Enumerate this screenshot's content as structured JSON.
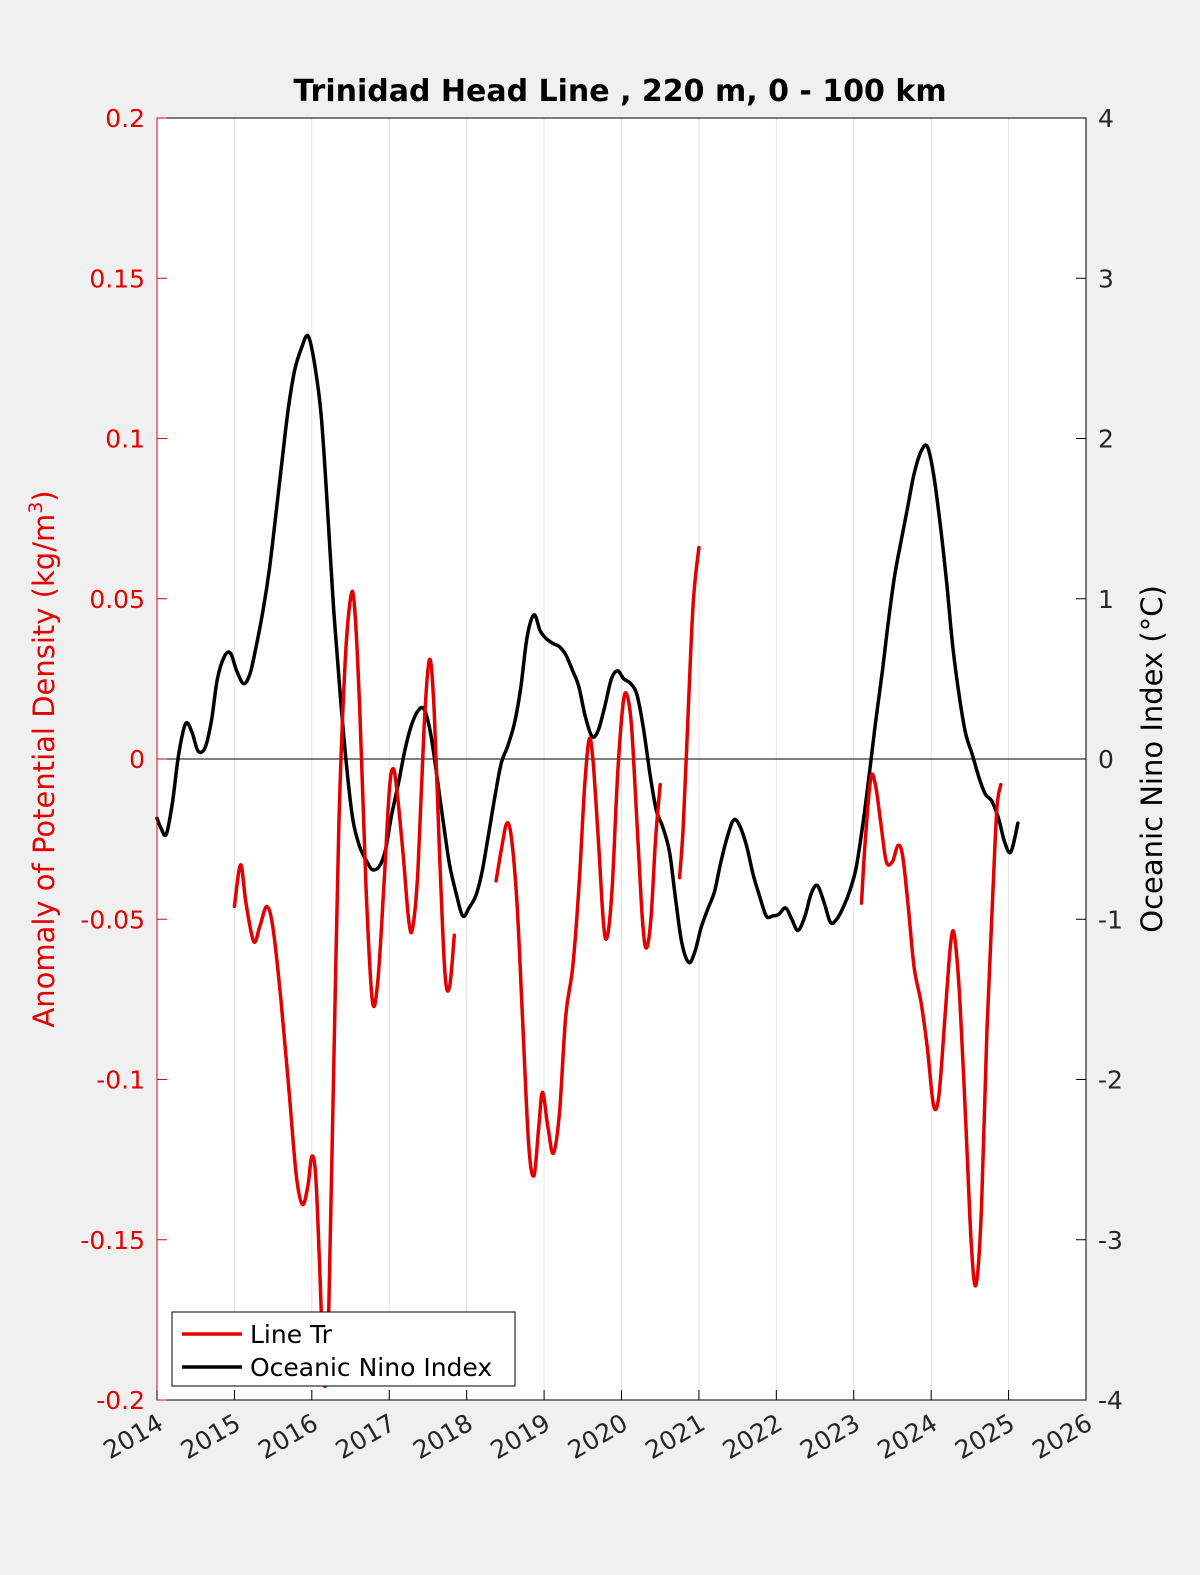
{
  "chart_data": {
    "type": "line",
    "title": "Trinidad Head Line , 220 m, 0 - 100 km",
    "xlabel": "",
    "ylabel_left": "Anomaly of Potential Density (kg/m",
    "ylabel_left_sup": "3",
    "ylabel_left_close": ")",
    "ylabel_right": "Oceanic Nino Index (°C)",
    "xlim": [
      2014,
      2026
    ],
    "ylim_left": [
      -0.2,
      0.2
    ],
    "ylim_right": [
      -4,
      4
    ],
    "xticks": [
      "2014",
      "2015",
      "2016",
      "2017",
      "2018",
      "2019",
      "2020",
      "2021",
      "2022",
      "2023",
      "2024",
      "2025",
      "2026"
    ],
    "xtick_values": [
      2014,
      2015,
      2016,
      2017,
      2018,
      2019,
      2020,
      2021,
      2022,
      2023,
      2024,
      2025,
      2026
    ],
    "yticks_left": [
      "0.2",
      "0.15",
      "0.1",
      "0.05",
      "0",
      "-0.05",
      "-0.1",
      "-0.15",
      "-0.2"
    ],
    "ytick_left_values": [
      0.2,
      0.15,
      0.1,
      0.05,
      0,
      -0.05,
      -0.1,
      -0.15,
      -0.2
    ],
    "yticks_right": [
      "4",
      "3",
      "2",
      "1",
      "0",
      "-1",
      "-2",
      "-3",
      "-4"
    ],
    "ytick_right_values": [
      4,
      3,
      2,
      1,
      0,
      -1,
      -2,
      -3,
      -4
    ],
    "grid": "vertical",
    "legend_position": "bottom-left",
    "colors": {
      "line_tr": "#e50000",
      "oni": "#000000",
      "left_axis": "#e50000",
      "right_axis": "#000000"
    },
    "series": [
      {
        "name": "Line Tr",
        "axis": "left",
        "segments": [
          [
            [
              2015.0,
              -0.046
            ],
            [
              2015.08,
              -0.033
            ],
            [
              2015.15,
              -0.045
            ],
            [
              2015.25,
              -0.057
            ],
            [
              2015.33,
              -0.052
            ],
            [
              2015.42,
              -0.046
            ],
            [
              2015.5,
              -0.053
            ],
            [
              2015.6,
              -0.075
            ],
            [
              2015.7,
              -0.102
            ],
            [
              2015.8,
              -0.13
            ],
            [
              2015.88,
              -0.139
            ],
            [
              2015.95,
              -0.133
            ],
            [
              2016.0,
              -0.124
            ],
            [
              2016.05,
              -0.13
            ],
            [
              2016.1,
              -0.158
            ],
            [
              2016.15,
              -0.19
            ],
            [
              2016.18,
              -0.194
            ],
            [
              2016.22,
              -0.17
            ],
            [
              2016.28,
              -0.1
            ],
            [
              2016.35,
              -0.02
            ],
            [
              2016.43,
              0.03
            ],
            [
              2016.5,
              0.05
            ],
            [
              2016.55,
              0.048
            ],
            [
              2016.62,
              0.015
            ],
            [
              2016.7,
              -0.04
            ],
            [
              2016.78,
              -0.075
            ],
            [
              2016.85,
              -0.07
            ],
            [
              2016.93,
              -0.04
            ],
            [
              2017.0,
              -0.01
            ],
            [
              2017.05,
              -0.003
            ],
            [
              2017.1,
              -0.01
            ],
            [
              2017.18,
              -0.03
            ],
            [
              2017.25,
              -0.05
            ],
            [
              2017.3,
              -0.053
            ],
            [
              2017.37,
              -0.035
            ],
            [
              2017.45,
              0.01
            ],
            [
              2017.52,
              0.031
            ],
            [
              2017.58,
              0.015
            ],
            [
              2017.65,
              -0.03
            ],
            [
              2017.72,
              -0.067
            ],
            [
              2017.78,
              -0.071
            ],
            [
              2017.84,
              -0.055
            ]
          ],
          [
            [
              2018.38,
              -0.038
            ],
            [
              2018.45,
              -0.028
            ],
            [
              2018.52,
              -0.02
            ],
            [
              2018.58,
              -0.025
            ],
            [
              2018.65,
              -0.045
            ],
            [
              2018.72,
              -0.08
            ],
            [
              2018.8,
              -0.12
            ],
            [
              2018.87,
              -0.13
            ],
            [
              2018.93,
              -0.115
            ],
            [
              2018.98,
              -0.104
            ],
            [
              2019.05,
              -0.115
            ],
            [
              2019.12,
              -0.123
            ],
            [
              2019.2,
              -0.11
            ],
            [
              2019.28,
              -0.08
            ],
            [
              2019.37,
              -0.065
            ],
            [
              2019.45,
              -0.04
            ],
            [
              2019.52,
              -0.01
            ],
            [
              2019.58,
              0.006
            ],
            [
              2019.63,
              0.0
            ],
            [
              2019.7,
              -0.025
            ],
            [
              2019.77,
              -0.052
            ],
            [
              2019.82,
              -0.055
            ],
            [
              2019.88,
              -0.04
            ],
            [
              2019.95,
              -0.005
            ],
            [
              2020.02,
              0.017
            ],
            [
              2020.07,
              0.02
            ],
            [
              2020.13,
              0.01
            ],
            [
              2020.2,
              -0.02
            ],
            [
              2020.27,
              -0.05
            ],
            [
              2020.32,
              -0.059
            ],
            [
              2020.38,
              -0.05
            ],
            [
              2020.44,
              -0.025
            ],
            [
              2020.5,
              -0.008
            ]
          ],
          [
            [
              2020.75,
              -0.037
            ],
            [
              2020.8,
              -0.02
            ],
            [
              2020.87,
              0.02
            ],
            [
              2020.93,
              0.05
            ],
            [
              2021.0,
              0.066
            ]
          ],
          [
            [
              2023.1,
              -0.045
            ],
            [
              2023.15,
              -0.025
            ],
            [
              2023.22,
              -0.006
            ],
            [
              2023.28,
              -0.008
            ],
            [
              2023.35,
              -0.02
            ],
            [
              2023.42,
              -0.032
            ],
            [
              2023.5,
              -0.032
            ],
            [
              2023.57,
              -0.027
            ],
            [
              2023.63,
              -0.03
            ],
            [
              2023.7,
              -0.045
            ],
            [
              2023.78,
              -0.065
            ],
            [
              2023.87,
              -0.076
            ],
            [
              2023.95,
              -0.09
            ],
            [
              2024.03,
              -0.108
            ],
            [
              2024.1,
              -0.105
            ],
            [
              2024.18,
              -0.08
            ],
            [
              2024.25,
              -0.058
            ],
            [
              2024.3,
              -0.055
            ],
            [
              2024.37,
              -0.075
            ],
            [
              2024.45,
              -0.115
            ],
            [
              2024.52,
              -0.152
            ],
            [
              2024.58,
              -0.164
            ],
            [
              2024.65,
              -0.14
            ],
            [
              2024.72,
              -0.085
            ],
            [
              2024.8,
              -0.04
            ],
            [
              2024.85,
              -0.015
            ],
            [
              2024.9,
              -0.008
            ]
          ]
        ]
      },
      {
        "name": "Oceanic Nino Index",
        "axis": "right",
        "segments": [
          [
            [
              2014.0,
              -0.37
            ],
            [
              2014.05,
              -0.43
            ],
            [
              2014.12,
              -0.47
            ],
            [
              2014.2,
              -0.27
            ],
            [
              2014.28,
              0.03
            ],
            [
              2014.37,
              0.22
            ],
            [
              2014.45,
              0.17
            ],
            [
              2014.53,
              0.05
            ],
            [
              2014.62,
              0.07
            ],
            [
              2014.7,
              0.23
            ],
            [
              2014.78,
              0.5
            ],
            [
              2014.87,
              0.64
            ],
            [
              2014.95,
              0.66
            ],
            [
              2015.03,
              0.55
            ],
            [
              2015.12,
              0.47
            ],
            [
              2015.2,
              0.53
            ],
            [
              2015.28,
              0.7
            ],
            [
              2015.37,
              0.93
            ],
            [
              2015.45,
              1.18
            ],
            [
              2015.53,
              1.5
            ],
            [
              2015.62,
              1.88
            ],
            [
              2015.7,
              2.2
            ],
            [
              2015.78,
              2.43
            ],
            [
              2015.87,
              2.57
            ],
            [
              2015.95,
              2.64
            ],
            [
              2016.03,
              2.48
            ],
            [
              2016.12,
              2.15
            ],
            [
              2016.2,
              1.58
            ],
            [
              2016.28,
              0.95
            ],
            [
              2016.37,
              0.38
            ],
            [
              2016.45,
              -0.05
            ],
            [
              2016.53,
              -0.38
            ],
            [
              2016.62,
              -0.55
            ],
            [
              2016.7,
              -0.63
            ],
            [
              2016.78,
              -0.69
            ],
            [
              2016.87,
              -0.67
            ],
            [
              2016.95,
              -0.57
            ],
            [
              2017.03,
              -0.35
            ],
            [
              2017.12,
              -0.15
            ],
            [
              2017.2,
              0.05
            ],
            [
              2017.28,
              0.2
            ],
            [
              2017.37,
              0.3
            ],
            [
              2017.45,
              0.31
            ],
            [
              2017.53,
              0.17
            ],
            [
              2017.62,
              -0.12
            ],
            [
              2017.7,
              -0.4
            ],
            [
              2017.78,
              -0.66
            ],
            [
              2017.87,
              -0.85
            ],
            [
              2017.95,
              -0.98
            ],
            [
              2018.03,
              -0.93
            ],
            [
              2018.12,
              -0.85
            ],
            [
              2018.2,
              -0.7
            ],
            [
              2018.28,
              -0.48
            ],
            [
              2018.37,
              -0.22
            ],
            [
              2018.45,
              -0.02
            ],
            [
              2018.53,
              0.08
            ],
            [
              2018.62,
              0.23
            ],
            [
              2018.7,
              0.45
            ],
            [
              2018.78,
              0.76
            ],
            [
              2018.87,
              0.9
            ],
            [
              2018.95,
              0.8
            ],
            [
              2019.03,
              0.75
            ],
            [
              2019.12,
              0.72
            ],
            [
              2019.2,
              0.7
            ],
            [
              2019.28,
              0.65
            ],
            [
              2019.37,
              0.55
            ],
            [
              2019.45,
              0.45
            ],
            [
              2019.53,
              0.27
            ],
            [
              2019.62,
              0.14
            ],
            [
              2019.7,
              0.18
            ],
            [
              2019.78,
              0.32
            ],
            [
              2019.87,
              0.5
            ],
            [
              2019.95,
              0.55
            ],
            [
              2020.03,
              0.5
            ],
            [
              2020.12,
              0.47
            ],
            [
              2020.2,
              0.4
            ],
            [
              2020.28,
              0.2
            ],
            [
              2020.37,
              -0.1
            ],
            [
              2020.45,
              -0.32
            ],
            [
              2020.53,
              -0.42
            ],
            [
              2020.62,
              -0.58
            ],
            [
              2020.7,
              -0.88
            ],
            [
              2020.78,
              -1.15
            ],
            [
              2020.87,
              -1.27
            ],
            [
              2020.95,
              -1.2
            ],
            [
              2021.03,
              -1.05
            ],
            [
              2021.12,
              -0.93
            ],
            [
              2021.2,
              -0.83
            ],
            [
              2021.28,
              -0.65
            ],
            [
              2021.37,
              -0.48
            ],
            [
              2021.45,
              -0.38
            ],
            [
              2021.53,
              -0.42
            ],
            [
              2021.62,
              -0.55
            ],
            [
              2021.7,
              -0.72
            ],
            [
              2021.78,
              -0.85
            ],
            [
              2021.87,
              -0.98
            ],
            [
              2021.95,
              -0.98
            ],
            [
              2022.03,
              -0.97
            ],
            [
              2022.12,
              -0.93
            ],
            [
              2022.2,
              -1.0
            ],
            [
              2022.28,
              -1.07
            ],
            [
              2022.37,
              -0.98
            ],
            [
              2022.45,
              -0.84
            ],
            [
              2022.53,
              -0.79
            ],
            [
              2022.62,
              -0.9
            ],
            [
              2022.7,
              -1.02
            ],
            [
              2022.78,
              -1.0
            ],
            [
              2022.87,
              -0.92
            ],
            [
              2022.95,
              -0.82
            ],
            [
              2023.03,
              -0.68
            ],
            [
              2023.12,
              -0.4
            ],
            [
              2023.2,
              -0.1
            ],
            [
              2023.28,
              0.22
            ],
            [
              2023.37,
              0.55
            ],
            [
              2023.45,
              0.87
            ],
            [
              2023.53,
              1.15
            ],
            [
              2023.62,
              1.38
            ],
            [
              2023.7,
              1.58
            ],
            [
              2023.78,
              1.78
            ],
            [
              2023.87,
              1.92
            ],
            [
              2023.95,
              1.95
            ],
            [
              2024.03,
              1.78
            ],
            [
              2024.12,
              1.45
            ],
            [
              2024.2,
              1.1
            ],
            [
              2024.28,
              0.7
            ],
            [
              2024.37,
              0.37
            ],
            [
              2024.45,
              0.15
            ],
            [
              2024.53,
              0.03
            ],
            [
              2024.62,
              -0.12
            ],
            [
              2024.7,
              -0.22
            ],
            [
              2024.78,
              -0.26
            ],
            [
              2024.87,
              -0.37
            ],
            [
              2024.95,
              -0.52
            ],
            [
              2025.03,
              -0.58
            ],
            [
              2025.12,
              -0.4
            ]
          ]
        ]
      }
    ]
  }
}
